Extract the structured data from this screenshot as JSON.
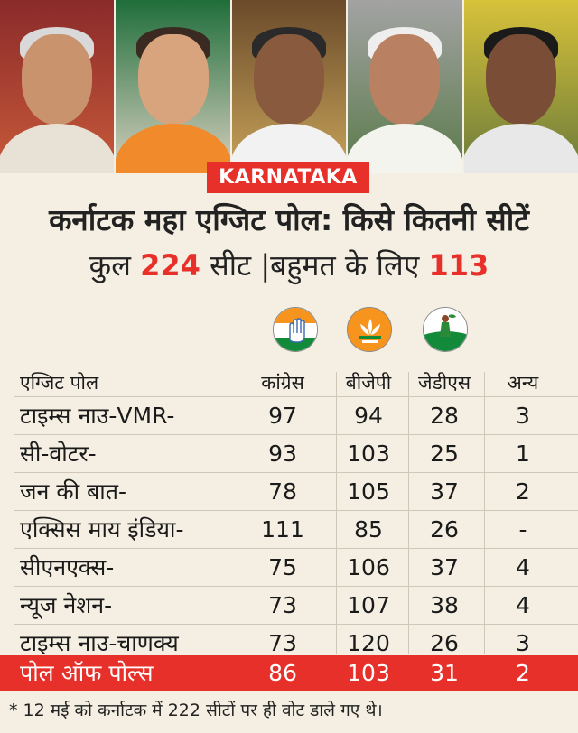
{
  "tag": "KARNATAKA",
  "title": "कर्नाटक महा एग्जिट पोल: किसे कितनी सीटें",
  "subtitle": {
    "prefix": "कुल ",
    "total": "224",
    "middle": " सीट  |बहुमत के लिए ",
    "majority": "113"
  },
  "colors": {
    "accent": "#e8302a",
    "background": "#f4efe2"
  },
  "party_symbols": [
    "congress-hand-symbol",
    "bjp-lotus-symbol",
    "jds-woman-farmer-symbol"
  ],
  "table": {
    "headers": [
      "एग्जिट पोल",
      "कांग्रेस",
      "बीजेपी",
      "जेडीएस",
      "अन्य"
    ],
    "rows": [
      [
        "टाइम्स नाउ-VMR-",
        "97",
        "94",
        "28",
        "3"
      ],
      [
        "सी-वोटर-",
        "93",
        "103",
        "25",
        "1"
      ],
      [
        "जन की बात-",
        "78",
        "105",
        "37",
        "2"
      ],
      [
        "एक्सिस माय इंडिया-",
        "111",
        "85",
        "26",
        "-"
      ],
      [
        "सीएनएक्स-",
        "75",
        "106",
        "37",
        "4"
      ],
      [
        "न्यूज नेशन-",
        "73",
        "107",
        "38",
        "4"
      ],
      [
        "टाइम्स नाउ-चाणक्य",
        "73",
        "120",
        "26",
        "3"
      ]
    ],
    "poll_of_polls": [
      "पोल ऑफ पोल्स",
      "86",
      "103",
      "31",
      "2"
    ]
  },
  "footnote": "* 12 मई को कर्नाटक में 222 सीटों पर ही वोट डाले गए थे।"
}
